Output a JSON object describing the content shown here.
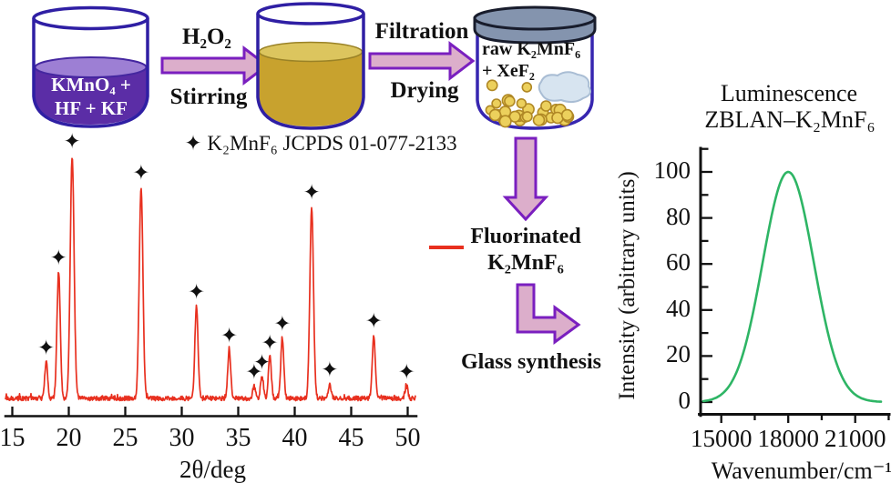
{
  "colors": {
    "outline_blue": "#2f1fa4",
    "purple_liquid": "#5b2da6",
    "purple_surface": "#9d7fd4",
    "yellow_liquid": "#c8a22e",
    "yellow_surface": "#dcc55e",
    "lid_gray": "#8494ae",
    "powder_yellow": "#ecd05c",
    "powder_outline": "#b08825",
    "xef2_blue": "#d7e4f0",
    "arrow_fill": "#dcaecb",
    "arrow_stroke": "#7a1fbf",
    "xrd_red": "#e8301f",
    "curve_green": "#2eb565",
    "text_black": "#111111"
  },
  "flow": {
    "beaker1": {
      "line1": "KMnO₄ +",
      "line2": "HF + KF"
    },
    "step1": {
      "top": "H₂O₂",
      "bottom": "Stirring"
    },
    "step2": {
      "top": "Filtration",
      "bottom": "Drying"
    },
    "jar": {
      "line1": "raw K₂MnF₆",
      "line2": "+ XeF₂"
    },
    "product": {
      "line1": "Fluorinated",
      "line2": "K₂MnF₆"
    },
    "glass": "Glass synthesis"
  },
  "xrd": {
    "annotation": "✦ K₂MnF₆  JCPDS 01-077-2133",
    "xlabel": "2θ/deg",
    "star_glyph": "✦"
  },
  "lum": {
    "title1": "Luminescence",
    "title2": "ZBLAN–K₂MnF₆",
    "xlabel": "Wavenumber/cm⁻¹",
    "ylabel": "Intensity (arbitrary units)"
  },
  "chart_data": [
    {
      "id": "xrd-pattern",
      "type": "line",
      "series_name": "Fluorinated K₂MnF₆",
      "color": "#e8301f",
      "xlabel": "2θ/deg",
      "xlim": [
        15,
        50.5
      ],
      "xticks": [
        15,
        20,
        25,
        30,
        35,
        40,
        45,
        50
      ],
      "y_axis_shown": false,
      "marker_legend": "✦ K₂MnF₆ JCPDS 01-077-2133",
      "peaks": [
        {
          "two_theta": 18.0,
          "rel_intensity": 15,
          "starred": true
        },
        {
          "two_theta": 19.1,
          "rel_intensity": 52,
          "starred": true
        },
        {
          "two_theta": 20.3,
          "rel_intensity": 100,
          "starred": true
        },
        {
          "two_theta": 26.4,
          "rel_intensity": 87,
          "starred": true
        },
        {
          "two_theta": 31.3,
          "rel_intensity": 38,
          "starred": true
        },
        {
          "two_theta": 34.2,
          "rel_intensity": 20,
          "starred": true
        },
        {
          "two_theta": 36.4,
          "rel_intensity": 5,
          "starred": true
        },
        {
          "two_theta": 37.1,
          "rel_intensity": 9,
          "starred": true
        },
        {
          "two_theta": 37.8,
          "rel_intensity": 17,
          "starred": true
        },
        {
          "two_theta": 38.9,
          "rel_intensity": 25,
          "starred": true
        },
        {
          "two_theta": 41.5,
          "rel_intensity": 79,
          "starred": true
        },
        {
          "two_theta": 43.1,
          "rel_intensity": 6,
          "starred": true
        },
        {
          "two_theta": 47.0,
          "rel_intensity": 26,
          "starred": true
        },
        {
          "two_theta": 49.9,
          "rel_intensity": 5,
          "starred": true
        }
      ]
    },
    {
      "id": "luminescence-spectrum",
      "type": "line",
      "title": "Luminescence ZBLAN–K₂MnF₆",
      "xlabel": "Wavenumber/cm⁻¹",
      "ylabel": "Intensity (arbitrary units)",
      "xlim": [
        14050,
        22900
      ],
      "xticks": [
        15000,
        18000,
        21000
      ],
      "xticks_minor": [
        16500,
        19500,
        22500
      ],
      "ylim": [
        0,
        100
      ],
      "yticks": [
        0,
        20,
        40,
        60,
        80,
        100
      ],
      "color": "#2eb565",
      "curve": {
        "shape": "gaussian",
        "center_wavenumber": 18000,
        "peak_intensity": 100,
        "fwhm_wavenumber": 2700
      }
    }
  ]
}
